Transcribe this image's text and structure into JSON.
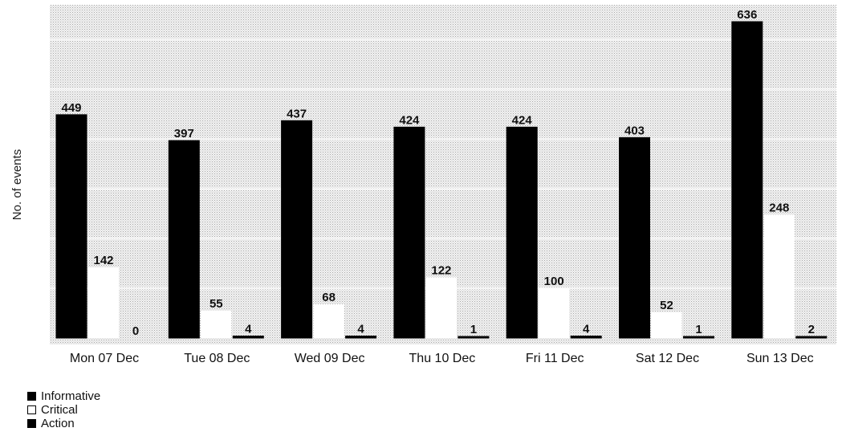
{
  "chart_data": {
    "type": "bar",
    "title": "",
    "xlabel": "",
    "ylabel": "No. of events",
    "ylim": [
      0,
      680
    ],
    "grid": false,
    "legend_position": "bottom-left",
    "categories": [
      "Mon 07 Dec",
      "Tue 08 Dec",
      "Wed 09 Dec",
      "Thu 10 Dec",
      "Fri 11 Dec",
      "Sat 12 Dec",
      "Sun 13 Dec"
    ],
    "series": [
      {
        "name": "Informative",
        "color": "#000000",
        "values": [
          449,
          397,
          437,
          424,
          424,
          403,
          636
        ]
      },
      {
        "name": "Critical",
        "color": "#ffffff",
        "values": [
          142,
          55,
          68,
          122,
          100,
          52,
          248
        ]
      },
      {
        "name": "Action",
        "color": "#000000",
        "values": [
          0,
          4,
          4,
          1,
          4,
          1,
          2
        ]
      }
    ]
  }
}
